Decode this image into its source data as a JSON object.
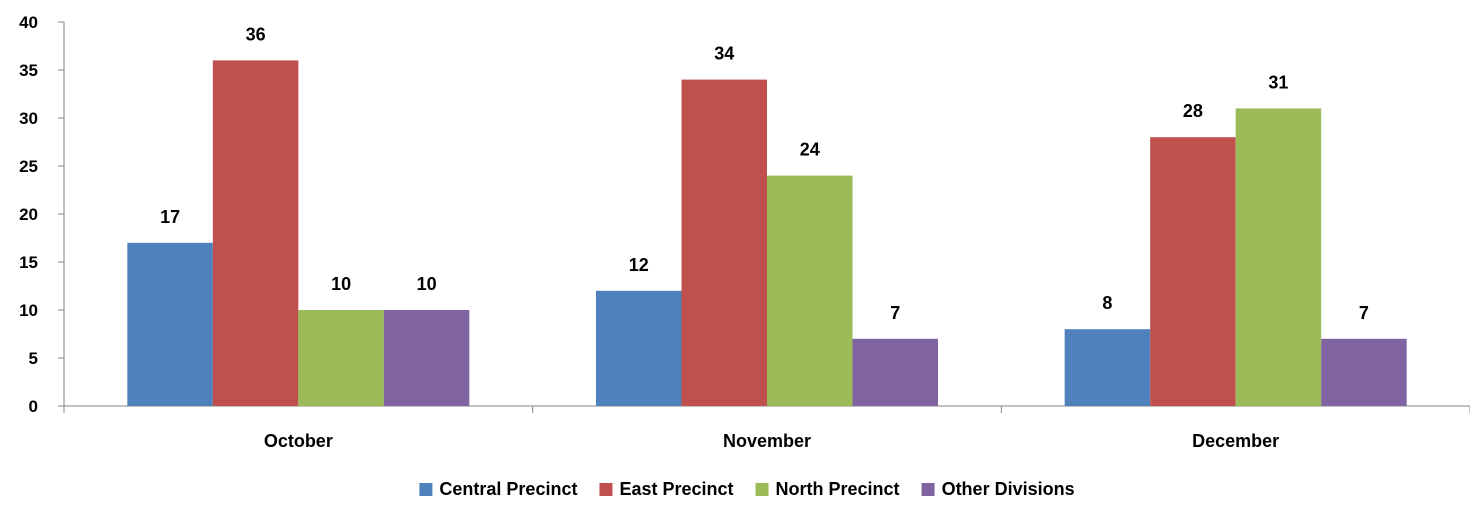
{
  "chart_data": {
    "type": "bar",
    "title": "",
    "xlabel": "",
    "ylabel": "",
    "categories": [
      "October",
      "November",
      "December"
    ],
    "series": [
      {
        "name": "Central Precinct",
        "values": [
          17,
          12,
          8
        ],
        "color": "#4F81BD"
      },
      {
        "name": "East Precinct",
        "values": [
          36,
          34,
          28
        ],
        "color": "#C0504D"
      },
      {
        "name": "North Precinct",
        "values": [
          10,
          24,
          31
        ],
        "color": "#9BBB59"
      },
      {
        "name": "Other Divisions",
        "values": [
          10,
          7,
          7
        ],
        "color": "#8064A2"
      }
    ],
    "ylim": [
      0,
      40
    ],
    "yticks": [
      0,
      5,
      10,
      15,
      20,
      25,
      30,
      35,
      40
    ],
    "grid": false,
    "data_labels": true,
    "legend_position": "bottom"
  }
}
